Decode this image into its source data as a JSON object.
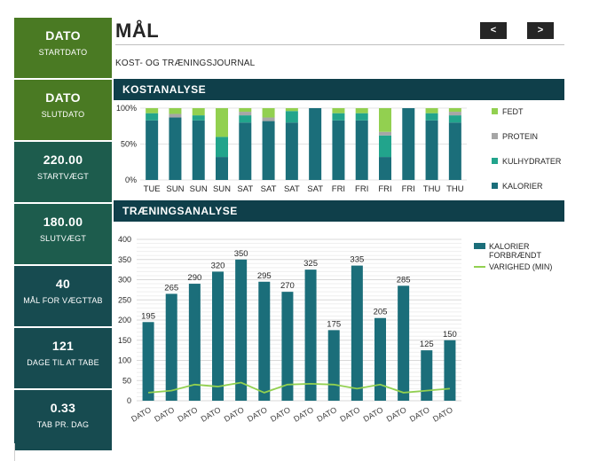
{
  "sidebar": [
    {
      "value": "DATO",
      "label": "STARTDATO",
      "color": "#4a7a23"
    },
    {
      "value": "DATO",
      "label": "SLUTDATO",
      "color": "#4a7a23"
    },
    {
      "value": "220.00",
      "label": "STARTVÆGT",
      "color": "#1d5c4d"
    },
    {
      "value": "180.00",
      "label": "SLUTVÆGT",
      "color": "#1d5c4d"
    },
    {
      "value": "40",
      "label": "MÅL FOR VÆGTTAB",
      "color": "#174b50"
    },
    {
      "value": "121",
      "label": "DAGE TIL AT TABE",
      "color": "#174b50"
    },
    {
      "value": "0.33",
      "label": "TAB PR. DAG",
      "color": "#174b50"
    }
  ],
  "header": {
    "title": "MÅL",
    "subtitle": "KOST- OG TRÆNINGSJOURNAL",
    "prev_label": "<",
    "next_label": ">"
  },
  "sections": {
    "diet": "KOSTANALYSE",
    "training": "TRÆNINGSANALYSE"
  },
  "chart_data": [
    {
      "type": "bar",
      "stacked": true,
      "percent": true,
      "categories": [
        "TUE",
        "SUN",
        "SUN",
        "SUN",
        "SAT",
        "SAT",
        "SAT",
        "SAT",
        "FRI",
        "FRI",
        "FRI",
        "FRI",
        "THU",
        "THU"
      ],
      "yticks": [
        "0%",
        "50%",
        "100%"
      ],
      "ylim": [
        0,
        100
      ],
      "legend_position": "right",
      "series": [
        {
          "name": "KALORIER",
          "color": "#1b6e7a",
          "values": [
            83,
            87,
            83,
            32,
            80,
            82,
            80,
            100,
            83,
            83,
            32,
            100,
            83,
            80
          ]
        },
        {
          "name": "KULHYDRATER",
          "color": "#22a48c",
          "values": [
            10,
            0,
            7,
            28,
            10,
            0,
            16,
            0,
            10,
            10,
            30,
            0,
            10,
            10
          ]
        },
        {
          "name": "PROTEIN",
          "color": "#a6a6a6",
          "values": [
            0,
            5,
            0,
            0,
            5,
            5,
            0,
            0,
            0,
            0,
            5,
            0,
            0,
            5
          ]
        },
        {
          "name": "FEDT",
          "color": "#92d050",
          "values": [
            7,
            8,
            10,
            40,
            5,
            13,
            4,
            0,
            7,
            7,
            33,
            0,
            7,
            5
          ]
        }
      ]
    },
    {
      "type": "bar",
      "categories": [
        "DATO",
        "DATO",
        "DATO",
        "DATO",
        "DATO",
        "DATO",
        "DATO",
        "DATO",
        "DATO",
        "DATO",
        "DATO",
        "DATO",
        "DATO",
        "DATO"
      ],
      "ylim": [
        0,
        400
      ],
      "yticks": [
        "0",
        "50",
        "100",
        "150",
        "200",
        "250",
        "300",
        "350",
        "400"
      ],
      "legend_position": "right",
      "series": [
        {
          "name": "KALORIER FORBRÆNDT",
          "color": "#1b6e7a",
          "values": [
            195,
            265,
            290,
            320,
            350,
            295,
            270,
            325,
            175,
            335,
            205,
            285,
            125,
            150
          ],
          "labels": [
            "195",
            "265",
            "290",
            "320",
            "350",
            "295",
            "270",
            "325",
            "175",
            "335",
            "205",
            "285",
            "125",
            "150"
          ]
        },
        {
          "name": "VARIGHED (MIN)",
          "color": "#92d050",
          "type": "line",
          "values": [
            20,
            25,
            40,
            35,
            45,
            20,
            40,
            42,
            40,
            30,
            40,
            20,
            25,
            30
          ]
        }
      ]
    }
  ]
}
